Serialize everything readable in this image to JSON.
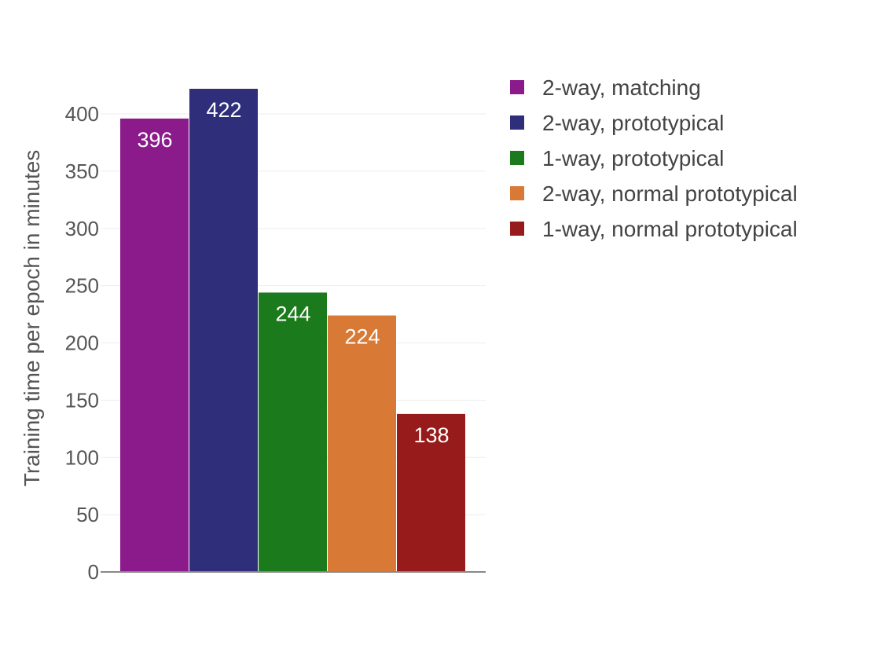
{
  "chart_data": {
    "type": "bar",
    "ylabel": "Training time per epoch in minutes",
    "ylim": [
      0,
      422
    ],
    "yticks": [
      0,
      50,
      100,
      150,
      200,
      250,
      300,
      350,
      400
    ],
    "grid": true,
    "legend_position": "top-right",
    "series": [
      {
        "name": "2-way, matching",
        "value": 396,
        "color": "#8b1a8b"
      },
      {
        "name": "2-way, prototypical",
        "value": 422,
        "color": "#2e2e7a"
      },
      {
        "name": "1-way, prototypical",
        "value": 244,
        "color": "#1b7a1b"
      },
      {
        "name": "2-way, normal prototypical",
        "value": 224,
        "color": "#d87a35"
      },
      {
        "name": "1-way, normal prototypical",
        "value": 138,
        "color": "#971b1b"
      }
    ]
  }
}
